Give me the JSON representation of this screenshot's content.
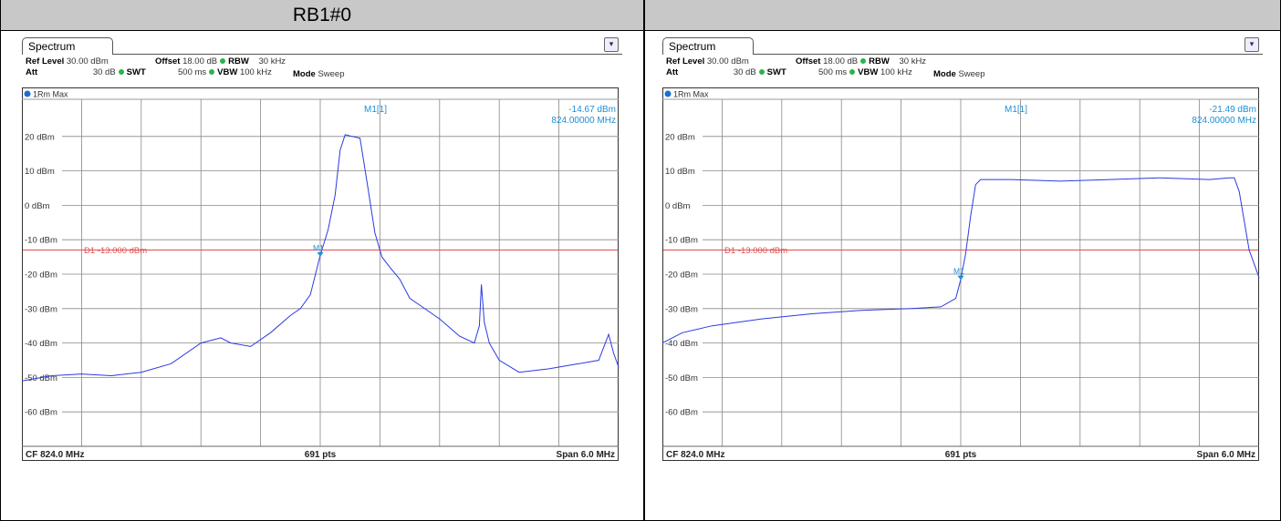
{
  "header": {
    "left_title": "RB1#0",
    "right_title": ""
  },
  "colors": {
    "trace": "#2a3be0",
    "marker": "#1a8fd6",
    "display_line": "#e05050",
    "grid": "#888888",
    "header_bg": "#c8c8c8"
  },
  "panels": [
    {
      "tab": "Spectrum",
      "params": {
        "ref_level_label": "Ref Level",
        "ref_level_value": "30.00 dBm",
        "offset_label": "Offset",
        "offset_value": "18.00 dB",
        "rbw_label": "RBW",
        "rbw_value": "30 kHz",
        "att_label": "Att",
        "att_value": "30 dB",
        "swt_label": "SWT",
        "swt_value": "500 ms",
        "vbw_label": "VBW",
        "vbw_value": "100 kHz",
        "mode_label": "Mode",
        "mode_value": "Sweep"
      },
      "trace_label": "1Rm Max",
      "marker_name": "M1[1]",
      "marker_label": "M1",
      "marker_level": "-14.67 dBm",
      "marker_freq": "824.00000 MHz",
      "display_line_label": "D1 -13.000 dBm",
      "cf_label": "CF 824.0 MHz",
      "pts_label": "691 pts",
      "span_label": "Span 6.0 MHz"
    },
    {
      "tab": "Spectrum",
      "params": {
        "ref_level_label": "Ref Level",
        "ref_level_value": "30.00 dBm",
        "offset_label": "Offset",
        "offset_value": "18.00 dB",
        "rbw_label": "RBW",
        "rbw_value": "30 kHz",
        "att_label": "Att",
        "att_value": "30 dB",
        "swt_label": "SWT",
        "swt_value": "500 ms",
        "vbw_label": "VBW",
        "vbw_value": "100 kHz",
        "mode_label": "Mode",
        "mode_value": "Sweep"
      },
      "trace_label": "1Rm Max",
      "marker_name": "M1[1]",
      "marker_label": "M1",
      "marker_level": "-21.49 dBm",
      "marker_freq": "824.00000 MHz",
      "display_line_label": "D1 -13.000 dBm",
      "cf_label": "CF 824.0 MHz",
      "pts_label": "691 pts",
      "span_label": "Span 6.0 MHz"
    }
  ],
  "chart_data": [
    {
      "type": "line",
      "ylim": [
        -70,
        30
      ],
      "xlim": [
        821.0,
        827.0
      ],
      "grid": true,
      "y_ticks": [
        20,
        10,
        0,
        -10,
        -20,
        -30,
        -40,
        -50,
        -60
      ],
      "y_tick_labels": [
        "20 dBm",
        "10 dBm",
        "0 dBm",
        "-10 dBm",
        "-20 dBm",
        "-30 dBm",
        "-40 dBm",
        "-50 dBm",
        "-60 dBm"
      ],
      "display_line": -13.0,
      "marker": {
        "x": 824.0,
        "y": -14.67
      },
      "series": [
        {
          "x": [
            821.0,
            821.3,
            821.6,
            821.9,
            822.2,
            822.5,
            822.8,
            823.0,
            823.1,
            823.3,
            823.5,
            823.7,
            823.8,
            823.9,
            824.0,
            824.08,
            824.15,
            824.2,
            824.25,
            824.32,
            824.4,
            824.48,
            824.55,
            824.62,
            824.7,
            824.8,
            824.9,
            825.0,
            825.2,
            825.4,
            825.55,
            825.6,
            825.62,
            825.65,
            825.7,
            825.8,
            826.0,
            826.3,
            826.6,
            826.8,
            826.9,
            826.95,
            827.0
          ],
          "y": [
            -51,
            -49.5,
            -49,
            -49.5,
            -48.5,
            -46,
            -40,
            -38.5,
            -40,
            -41,
            -37,
            -32,
            -30,
            -26,
            -14.5,
            -7,
            3,
            16,
            20.5,
            20,
            19.5,
            5,
            -8,
            -15,
            -18,
            -21.5,
            -27,
            -29,
            -33,
            -38,
            -40,
            -35,
            -23,
            -34,
            -40,
            -45,
            -48.5,
            -47.5,
            -46,
            -45,
            -37.5,
            -43,
            -47
          ]
        }
      ]
    },
    {
      "type": "line",
      "ylim": [
        -70,
        30
      ],
      "xlim": [
        821.0,
        827.0
      ],
      "grid": true,
      "y_ticks": [
        20,
        10,
        0,
        -10,
        -20,
        -30,
        -40,
        -50,
        -60
      ],
      "y_tick_labels": [
        "20 dBm",
        "10 dBm",
        "0 dBm",
        "-10 dBm",
        "-20 dBm",
        "-30 dBm",
        "-40 dBm",
        "-50 dBm",
        "-60 dBm"
      ],
      "display_line": -13.0,
      "marker": {
        "x": 824.0,
        "y": -21.49
      },
      "series": [
        {
          "x": [
            821.0,
            821.2,
            821.5,
            822.0,
            822.5,
            823.0,
            823.5,
            823.8,
            823.95,
            824.0,
            824.05,
            824.1,
            824.15,
            824.2,
            824.5,
            825.0,
            825.5,
            826.0,
            826.5,
            826.7,
            826.75,
            826.8,
            826.9,
            827.0
          ],
          "y": [
            -40,
            -37,
            -35,
            -33,
            -31.5,
            -30.5,
            -30,
            -29.5,
            -27,
            -21.5,
            -14,
            -3,
            6,
            7.5,
            7.5,
            7,
            7.5,
            8,
            7.5,
            8,
            8,
            4,
            -13,
            -21
          ]
        }
      ]
    }
  ]
}
